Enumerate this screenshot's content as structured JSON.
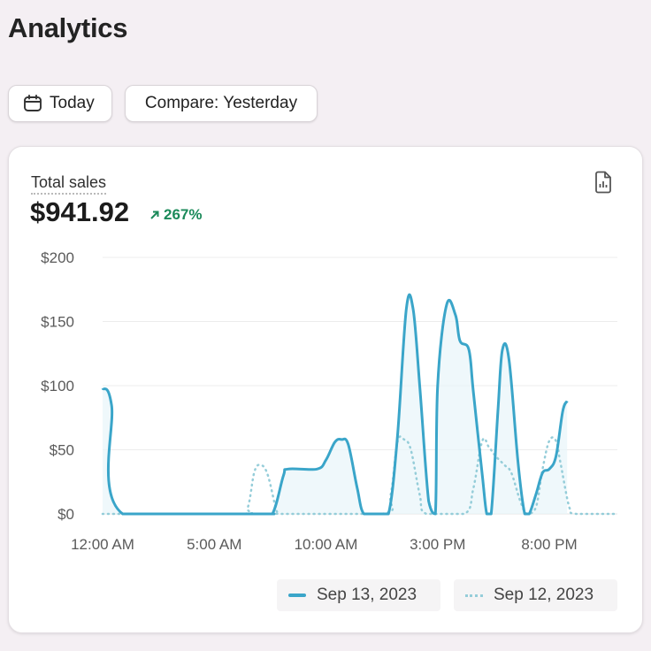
{
  "header": {
    "title": "Analytics"
  },
  "filters": {
    "date_label": "Today",
    "compare_label": "Compare: Yesterday"
  },
  "card": {
    "metric_label": "Total sales",
    "metric_value": "$941.92",
    "change": "267%"
  },
  "colors": {
    "current": "#3aa5c9",
    "previous": "#95cdd9",
    "positive": "#1b8a5a"
  },
  "chart_data": {
    "type": "line",
    "ylim": [
      0,
      200
    ],
    "y_ticks": [
      "$200",
      "$150",
      "$100",
      "$50",
      "$0"
    ],
    "y_tick_values": [
      200,
      150,
      100,
      50,
      0
    ],
    "x_tick_labels": [
      "12:00 AM",
      "5:00 AM",
      "10:00 AM",
      "3:00 PM",
      "8:00 PM"
    ],
    "x_tick_hours": [
      0,
      5,
      10,
      15,
      20
    ],
    "x_range": [
      0,
      23
    ],
    "grid": true,
    "legend_position": "bottom-right",
    "series": [
      {
        "name": "Sep 13, 2023",
        "style": "solid",
        "points": [
          [
            0,
            98
          ],
          [
            0.4,
            85
          ],
          [
            0.9,
            0
          ],
          [
            7,
            0
          ],
          [
            7.6,
            0
          ],
          [
            8.1,
            30
          ],
          [
            8.3,
            35
          ],
          [
            9.6,
            35
          ],
          [
            10,
            42
          ],
          [
            10.4,
            56
          ],
          [
            10.7,
            58
          ],
          [
            11,
            54
          ],
          [
            11.4,
            20
          ],
          [
            11.7,
            0
          ],
          [
            12.3,
            0
          ],
          [
            12.8,
            0
          ],
          [
            13.2,
            60
          ],
          [
            13.6,
            160
          ],
          [
            13.9,
            160
          ],
          [
            14.2,
            100
          ],
          [
            14.6,
            10
          ],
          [
            14.9,
            0
          ],
          [
            15,
            100
          ],
          [
            15.4,
            163
          ],
          [
            15.8,
            155
          ],
          [
            16,
            135
          ],
          [
            16.4,
            128
          ],
          [
            16.6,
            95
          ],
          [
            17,
            30
          ],
          [
            17.2,
            0
          ],
          [
            17.4,
            0
          ],
          [
            17.7,
            80
          ],
          [
            17.9,
            128
          ],
          [
            18.2,
            120
          ],
          [
            18.6,
            40
          ],
          [
            18.9,
            0
          ],
          [
            19.1,
            0
          ],
          [
            19.4,
            15
          ],
          [
            19.7,
            32
          ],
          [
            20,
            35
          ],
          [
            20.3,
            45
          ],
          [
            20.6,
            80
          ],
          [
            20.8,
            88
          ]
        ]
      },
      {
        "name": "Sep 12, 2023",
        "style": "dotted",
        "points": [
          [
            0,
            0
          ],
          [
            6.1,
            0
          ],
          [
            6.5,
            5
          ],
          [
            6.8,
            33
          ],
          [
            7.1,
            38
          ],
          [
            7.4,
            30
          ],
          [
            7.8,
            2
          ],
          [
            8,
            0
          ],
          [
            12.5,
            0
          ],
          [
            12.9,
            15
          ],
          [
            13.2,
            56
          ],
          [
            13.5,
            58
          ],
          [
            13.8,
            50
          ],
          [
            14.2,
            15
          ],
          [
            14.5,
            0
          ],
          [
            16.2,
            0
          ],
          [
            16.6,
            20
          ],
          [
            17,
            57
          ],
          [
            17.3,
            52
          ],
          [
            17.6,
            45
          ],
          [
            18,
            38
          ],
          [
            18.3,
            32
          ],
          [
            18.7,
            10
          ],
          [
            19,
            0
          ],
          [
            19.4,
            5
          ],
          [
            19.7,
            35
          ],
          [
            20,
            57
          ],
          [
            20.3,
            57
          ],
          [
            20.5,
            40
          ],
          [
            20.9,
            5
          ],
          [
            21.2,
            0
          ],
          [
            23,
            0
          ]
        ]
      }
    ]
  }
}
